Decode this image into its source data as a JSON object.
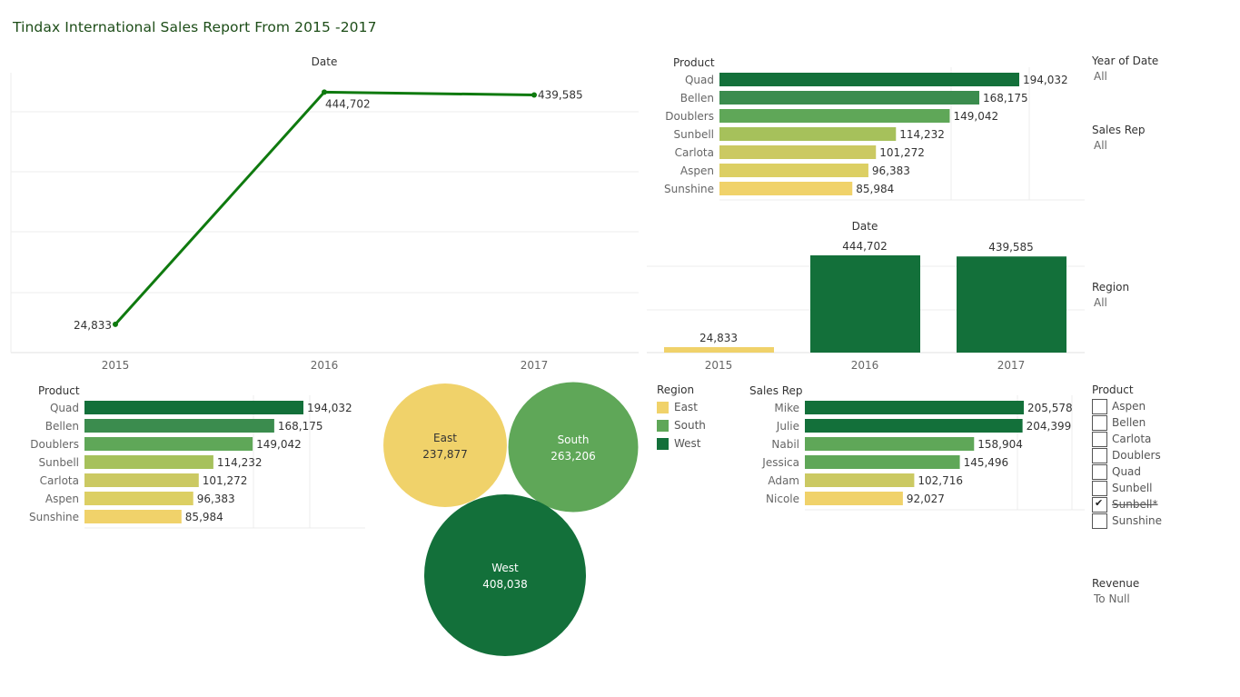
{
  "title": "Tindax International Sales Report From 2015 -2017",
  "colors": {
    "dark_green": "#13703a",
    "mid_green": "#3b8c4e",
    "green": "#5fa758",
    "light_green": "#a6c15b",
    "olive_yellow": "#cbc962",
    "pale_yellow": "#dccf63",
    "yellow": "#f0d26a",
    "line_green": "#0f7a0f",
    "title_green": "#1d4d18"
  },
  "line_chart": {
    "header": "Date",
    "chart_data": {
      "type": "line",
      "categories": [
        "2015",
        "2016",
        "2017"
      ],
      "values": [
        24833,
        444702,
        439585
      ],
      "labels": [
        "24,833",
        "444,702",
        "439,585"
      ],
      "title": "Date",
      "grid": true
    }
  },
  "product_top": {
    "header": "Product",
    "chart_data": {
      "type": "bar",
      "categories": [
        "Quad",
        "Bellen",
        "Doublers",
        "Sunbell",
        "Carlota",
        "Aspen",
        "Sunshine"
      ],
      "values": [
        194032,
        168175,
        149042,
        114232,
        101272,
        96383,
        85984
      ],
      "labels": [
        "194,032",
        "168,175",
        "149,042",
        "114,232",
        "101,272",
        "96,383",
        "85,984"
      ]
    }
  },
  "date_bars": {
    "header": "Date",
    "chart_data": {
      "type": "bar",
      "categories": [
        "2015",
        "2016",
        "2017"
      ],
      "values": [
        24833,
        444702,
        439585
      ],
      "labels": [
        "24,833",
        "444,702",
        "439,585"
      ],
      "title": "Date"
    }
  },
  "product_bottom": {
    "header": "Product",
    "chart_data": {
      "type": "bar",
      "categories": [
        "Quad",
        "Bellen",
        "Doublers",
        "Sunbell",
        "Carlota",
        "Aspen",
        "Sunshine"
      ],
      "values": [
        194032,
        168175,
        149042,
        114232,
        101272,
        96383,
        85984
      ],
      "labels": [
        "194,032",
        "168,175",
        "149,042",
        "114,232",
        "101,272",
        "96,383",
        "85,984"
      ]
    }
  },
  "region_bubbles": {
    "chart_data": {
      "type": "bubble",
      "categories": [
        "East",
        "South",
        "West"
      ],
      "values": [
        237877,
        263206,
        408038
      ],
      "labels": [
        "237,877",
        "263,206",
        "408,038"
      ]
    }
  },
  "region_legend": {
    "title": "Region",
    "items": [
      "East",
      "South",
      "West"
    ]
  },
  "sales_rep": {
    "header": "Sales Rep",
    "chart_data": {
      "type": "bar",
      "categories": [
        "Mike",
        "Julie",
        "Nabil",
        "Jessica",
        "Adam",
        "Nicole"
      ],
      "values": [
        205578,
        204399,
        158904,
        145496,
        102716,
        92027
      ],
      "labels": [
        "205,578",
        "204,399",
        "158,904",
        "145,496",
        "102,716",
        "92,027"
      ]
    }
  },
  "filters": {
    "year_label": "Year of Date",
    "year_value": "All",
    "rep_label": "Sales Rep",
    "rep_value": "All",
    "region_label": "Region",
    "region_value": "All",
    "product_label": "Product",
    "product_options": [
      {
        "label": "Aspen",
        "checked": false,
        "strike": false
      },
      {
        "label": "Bellen",
        "checked": false,
        "strike": false
      },
      {
        "label": "Carlota",
        "checked": false,
        "strike": false
      },
      {
        "label": "Doublers",
        "checked": false,
        "strike": false
      },
      {
        "label": "Quad",
        "checked": false,
        "strike": false
      },
      {
        "label": "Sunbell",
        "checked": false,
        "strike": false
      },
      {
        "label": "Sunbell*",
        "checked": true,
        "strike": true
      },
      {
        "label": "Sunshine",
        "checked": false,
        "strike": false
      }
    ],
    "revenue_label": "Revenue",
    "revenue_value": "To Null"
  }
}
